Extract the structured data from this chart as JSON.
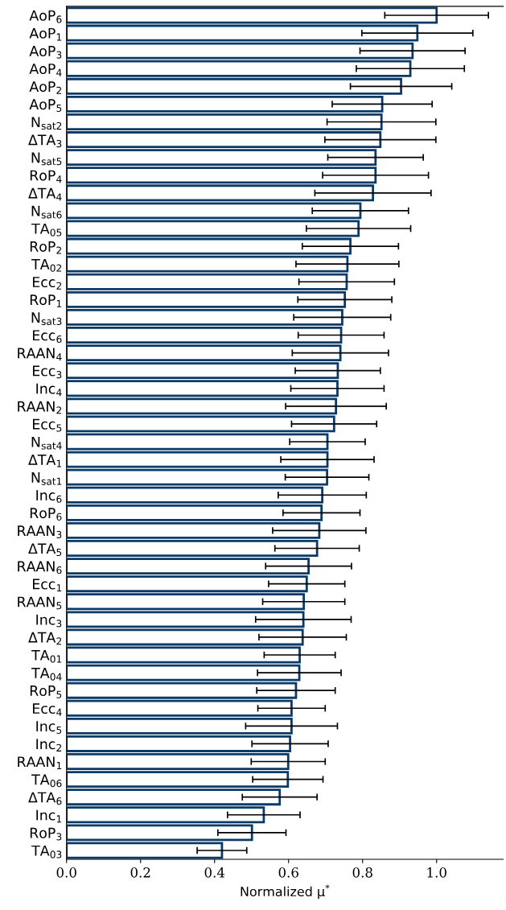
{
  "chart_data": {
    "type": "bar",
    "orientation": "horizontal",
    "xlabel": "Normalized μ$^{*}$",
    "categories": [
      "AoP$_{6}$",
      "AoP$_{1}$",
      "AoP$_{3}$",
      "AoP$_{4}$",
      "AoP$_{2}$",
      "AoP$_{5}$",
      "N$_{sat2}$",
      "ΔTA$_{3}$",
      "N$_{sat5}$",
      "RoP$_{4}$",
      "ΔTA$_{4}$",
      "N$_{sat6}$",
      "TA$_{05}$",
      "RoP$_{2}$",
      "TA$_{02}$",
      "Ecc$_{2}$",
      "RoP$_{1}$",
      "N$_{sat3}$",
      "Ecc$_{6}$",
      "RAAN$_{4}$",
      "Ecc$_{3}$",
      "Inc$_{4}$",
      "RAAN$_{2}$",
      "Ecc$_{5}$",
      "N$_{sat4}$",
      "ΔTA$_{1}$",
      "N$_{sat1}$",
      "Inc$_{6}$",
      "RoP$_{6}$",
      "RAAN$_{3}$",
      "ΔTA$_{5}$",
      "RAAN$_{6}$",
      "Ecc$_{1}$",
      "RAAN$_{5}$",
      "Inc$_{3}$",
      "ΔTA$_{2}$",
      "TA$_{01}$",
      "TA$_{04}$",
      "RoP$_{5}$",
      "Ecc$_{4}$",
      "Inc$_{5}$",
      "Inc$_{2}$",
      "RAAN$_{1}$",
      "TA$_{06}$",
      "ΔTA$_{6}$",
      "Inc$_{1}$",
      "RoP$_{3}$",
      "TA$_{03}$"
    ],
    "values": [
      1.0,
      0.948,
      0.935,
      0.929,
      0.904,
      0.853,
      0.851,
      0.848,
      0.835,
      0.835,
      0.828,
      0.794,
      0.789,
      0.767,
      0.759,
      0.757,
      0.752,
      0.745,
      0.742,
      0.74,
      0.733,
      0.732,
      0.728,
      0.723,
      0.705,
      0.705,
      0.704,
      0.691,
      0.689,
      0.683,
      0.677,
      0.654,
      0.649,
      0.641,
      0.64,
      0.638,
      0.63,
      0.629,
      0.62,
      0.608,
      0.608,
      0.604,
      0.599,
      0.598,
      0.576,
      0.533,
      0.501,
      0.42
    ],
    "errors": [
      0.14,
      0.15,
      0.142,
      0.146,
      0.137,
      0.135,
      0.147,
      0.15,
      0.129,
      0.143,
      0.157,
      0.13,
      0.141,
      0.13,
      0.139,
      0.129,
      0.127,
      0.131,
      0.116,
      0.13,
      0.115,
      0.126,
      0.136,
      0.115,
      0.102,
      0.126,
      0.113,
      0.119,
      0.104,
      0.126,
      0.114,
      0.116,
      0.103,
      0.111,
      0.129,
      0.118,
      0.096,
      0.113,
      0.106,
      0.091,
      0.124,
      0.103,
      0.1,
      0.095,
      0.101,
      0.098,
      0.092,
      0.067
    ],
    "color": "#0b3a66",
    "xlim": [
      0,
      1.18
    ],
    "xticks": [
      {
        "value": 0,
        "label": "0.0"
      },
      {
        "value": 0.2,
        "label": "0.2"
      },
      {
        "value": 0.4,
        "label": "0.4"
      },
      {
        "value": 0.6,
        "label": "0.6"
      },
      {
        "value": 0.8,
        "label": "0.8"
      },
      {
        "value": 1.0,
        "label": "1.0"
      }
    ],
    "grid": false,
    "legend": false
  }
}
